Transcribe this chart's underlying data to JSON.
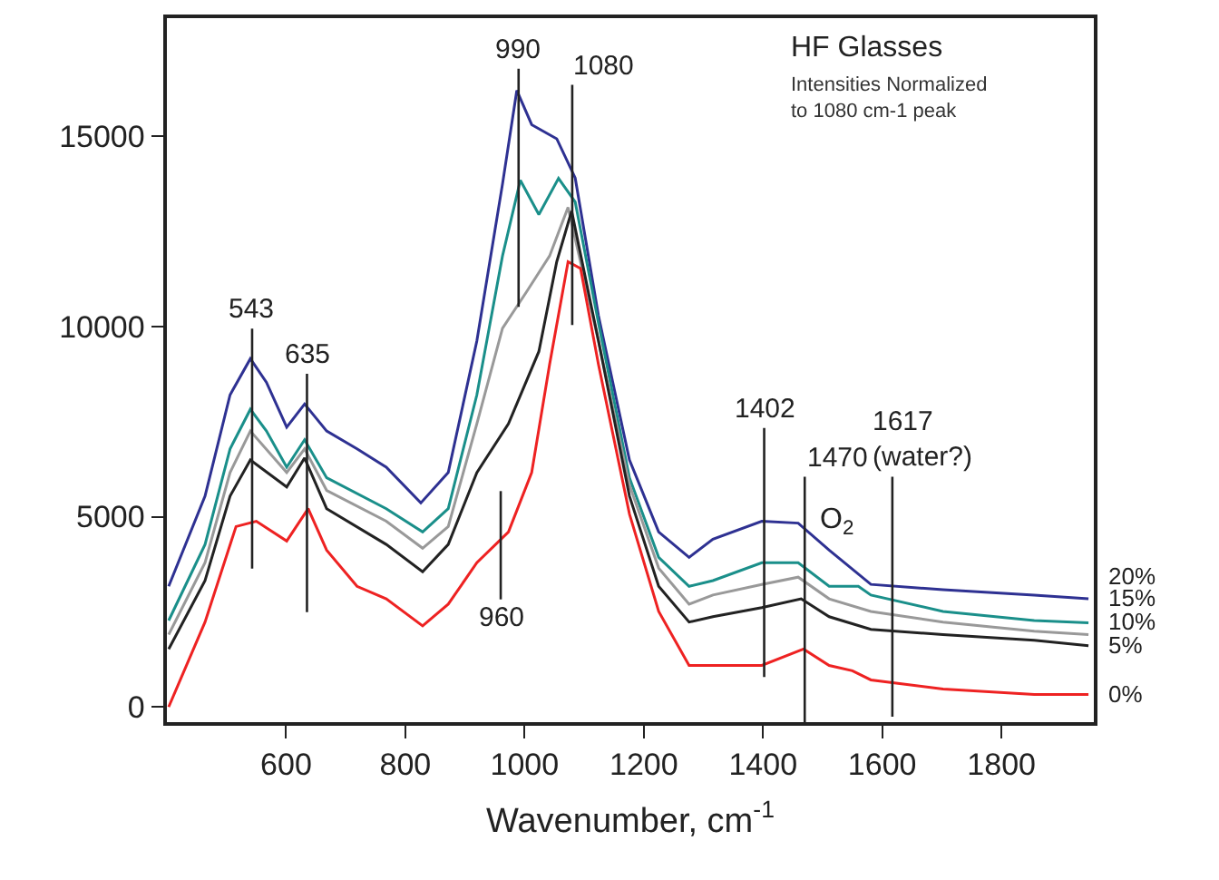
{
  "chart_data": {
    "type": "line",
    "title": "HF Glasses",
    "subtitle": "Intensities Normalized\nto 1080 cm-1 peak",
    "xlabel": "Wavenumber, cm$^{-1}$",
    "xlim": [
      400,
      1955
    ],
    "ylim": [
      -400,
      18100
    ],
    "xticks": [
      600,
      800,
      1000,
      1200,
      1400,
      1600,
      1800
    ],
    "yticks": [
      0,
      5000,
      10000,
      15000
    ],
    "legend": false,
    "marker": "none",
    "line_style": "solid",
    "series": [
      {
        "name": "20%",
        "color": "#2e3192",
        "x": [
          403,
          464,
          506,
          540,
          567,
          601,
          631,
          668,
          719,
          768,
          826,
          872,
          920,
          963,
          987,
          1012,
          1054,
          1085,
          1124,
          1176,
          1225,
          1276,
          1316,
          1398,
          1459,
          1511,
          1581,
          1702,
          1855,
          1946
        ],
        "values": [
          3170,
          5540,
          8200,
          9150,
          8530,
          7350,
          7960,
          7250,
          6780,
          6300,
          5360,
          6160,
          9620,
          13740,
          16200,
          15300,
          14930,
          13900,
          10280,
          6490,
          4600,
          3930,
          4410,
          4880,
          4830,
          4120,
          3220,
          3080,
          2940,
          2840
        ]
      },
      {
        "name": "15%",
        "color": "#1a8f8a",
        "x": [
          403,
          464,
          506,
          540,
          567,
          601,
          631,
          668,
          768,
          829,
          872,
          920,
          963,
          993,
          1024,
          1057,
          1085,
          1124,
          1176,
          1225,
          1276,
          1316,
          1398,
          1459,
          1511,
          1560,
          1581,
          1702,
          1855,
          1946
        ],
        "values": [
          2270,
          4270,
          6780,
          7820,
          7250,
          6300,
          7020,
          6020,
          5210,
          4600,
          5210,
          8200,
          11850,
          13840,
          12940,
          13890,
          13270,
          10090,
          6020,
          3930,
          3170,
          3320,
          3790,
          3790,
          3170,
          3170,
          2940,
          2510,
          2270,
          2210
        ]
      },
      {
        "name": "10%",
        "color": "#999999",
        "x": [
          403,
          464,
          506,
          540,
          601,
          631,
          668,
          768,
          829,
          872,
          920,
          963,
          1003,
          1042,
          1073,
          1124,
          1176,
          1225,
          1276,
          1316,
          1398,
          1459,
          1511,
          1581,
          1702,
          1855,
          1946
        ],
        "values": [
          1900,
          3790,
          6160,
          7250,
          6160,
          6780,
          5690,
          4880,
          4170,
          4740,
          7440,
          9950,
          10900,
          11850,
          13130,
          9620,
          5830,
          3650,
          2700,
          2940,
          3220,
          3410,
          2840,
          2510,
          2230,
          1990,
          1900
        ]
      },
      {
        "name": "5%",
        "color": "#222222",
        "x": [
          403,
          464,
          506,
          540,
          601,
          631,
          668,
          768,
          829,
          872,
          920,
          973,
          1024,
          1054,
          1079,
          1124,
          1176,
          1225,
          1276,
          1316,
          1398,
          1464,
          1511,
          1581,
          1702,
          1855,
          1946
        ],
        "values": [
          1520,
          3320,
          5540,
          6490,
          5780,
          6540,
          5210,
          4270,
          3550,
          4270,
          6160,
          7440,
          9340,
          11700,
          13030,
          9620,
          5540,
          3170,
          2230,
          2370,
          2610,
          2840,
          2370,
          2040,
          1900,
          1750,
          1610
        ]
      },
      {
        "name": "0%",
        "color": "#ee2222",
        "x": [
          403,
          464,
          516,
          550,
          601,
          637,
          668,
          719,
          768,
          829,
          872,
          920,
          973,
          1012,
          1042,
          1073,
          1094,
          1124,
          1176,
          1225,
          1276,
          1316,
          1398,
          1468,
          1511,
          1550,
          1581,
          1702,
          1855,
          1946
        ],
        "values": [
          0,
          2230,
          4740,
          4880,
          4360,
          5210,
          4120,
          3170,
          2840,
          2130,
          2700,
          3790,
          4600,
          6160,
          9000,
          11700,
          11520,
          9000,
          5070,
          2510,
          1090,
          1090,
          1090,
          1520,
          1090,
          950,
          710,
          470,
          330,
          330
        ]
      }
    ],
    "annotations": [
      "O$_{2}$"
    ],
    "ref_lines": [
      {
        "axis": "x",
        "value": 543,
        "label": "543"
      },
      {
        "axis": "x",
        "value": 635,
        "label": "635"
      },
      {
        "axis": "x",
        "value": 990,
        "label": "990"
      },
      {
        "axis": "x",
        "value": 1080,
        "label": "1080"
      },
      {
        "axis": "x",
        "value": 960,
        "label": "960"
      },
      {
        "axis": "x",
        "value": 1402,
        "label": "1402"
      },
      {
        "axis": "x",
        "value": 1470,
        "label": "1470"
      },
      {
        "axis": "x",
        "value": 1617,
        "label": "1617\n(water?)"
      }
    ]
  }
}
